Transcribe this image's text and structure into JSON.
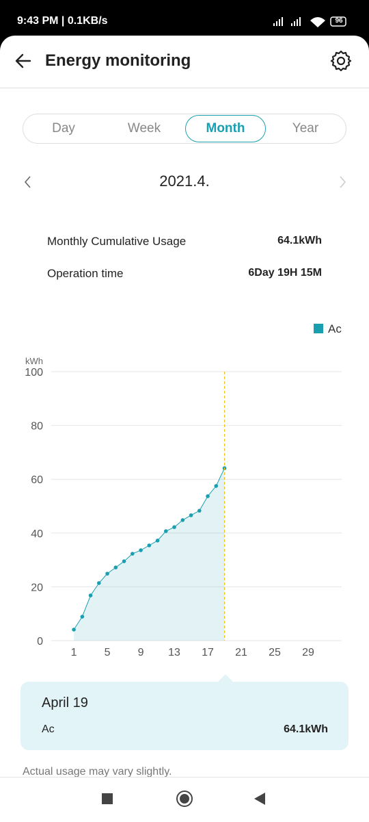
{
  "status_bar": {
    "time": "9:43 PM | 0.1KB/s",
    "battery": "96"
  },
  "header": {
    "title": "Energy monitoring"
  },
  "tabs": [
    {
      "label": "Day",
      "selected": false
    },
    {
      "label": "Week",
      "selected": false
    },
    {
      "label": "Month",
      "selected": true
    },
    {
      "label": "Year",
      "selected": false
    }
  ],
  "period": "2021.4.",
  "summary": [
    {
      "label": "Monthly Cumulative Usage",
      "value": "64.1kWh"
    },
    {
      "label": "Operation time",
      "value": "6Day 19H 15M"
    }
  ],
  "chart_data": {
    "type": "line",
    "y_axis_label": "kWh",
    "x": [
      1,
      2,
      3,
      4,
      5,
      6,
      7,
      8,
      9,
      10,
      11,
      12,
      13,
      14,
      15,
      16,
      17,
      18,
      19
    ],
    "series": [
      {
        "name": "Ac",
        "color": "#1a9fb0",
        "values": [
          4.1,
          8.9,
          16.8,
          21.4,
          24.9,
          27.2,
          29.5,
          32.3,
          33.6,
          35.4,
          37.2,
          40.7,
          42.2,
          44.8,
          46.6,
          48.3,
          53.7,
          57.5,
          64.1
        ]
      }
    ],
    "xlim": [
      -1.7,
      33
    ],
    "xticks": [
      1,
      5,
      9,
      13,
      17,
      21,
      25,
      29
    ],
    "ylim": [
      0,
      100
    ],
    "yticks": [
      0,
      20,
      40,
      60,
      80,
      100
    ],
    "grid": true,
    "legend": "top-right",
    "highlight_x": 19,
    "highlight_color": "#f0c020"
  },
  "tooltip": {
    "title": "April 19",
    "label": "Ac",
    "value": "64.1kWh"
  },
  "footer_note": "Actual usage may vary slightly."
}
